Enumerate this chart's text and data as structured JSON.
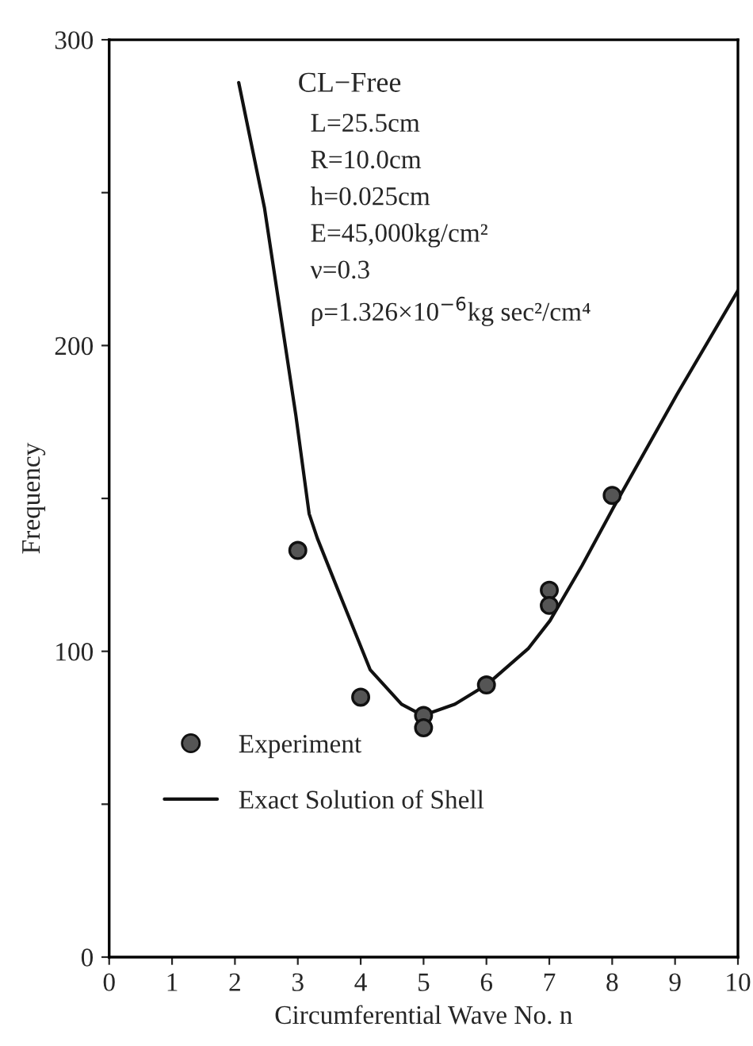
{
  "chart_data": {
    "type": "scatter",
    "xlabel": "Circumferential Wave No. n",
    "ylabel": "Frequency",
    "xlim": [
      0,
      10
    ],
    "ylim": [
      0,
      300
    ],
    "xticks": [
      0,
      1,
      2,
      3,
      4,
      5,
      6,
      7,
      8,
      9,
      10
    ],
    "yticks": [
      0,
      {
        "value": 50,
        "label": null
      },
      100,
      {
        "value": 150,
        "label": null
      },
      200,
      {
        "value": 250,
        "label": null
      },
      300
    ],
    "grid": false,
    "legend": "bottom left",
    "series": [
      {
        "name": "Experiment",
        "marker": "circle",
        "color": "#555555",
        "x": [
          3,
          4,
          5,
          5,
          6,
          7,
          7,
          8
        ],
        "values": [
          133,
          85,
          79,
          75,
          89,
          120,
          115,
          151
        ]
      },
      {
        "name": "Exact Solution of Shell",
        "type": "line",
        "marker": "none",
        "line_style": "solid",
        "color": "#111111",
        "x": [
          2.06,
          2.47,
          2.97,
          3.18,
          3.31,
          3.64,
          4.15,
          4.65,
          4.99,
          5.5,
          6.0,
          6.67,
          7.01,
          7.52,
          8.02,
          9.03,
          10.0
        ],
        "values": [
          286,
          245,
          177,
          145,
          137,
          120,
          94,
          82.7,
          79,
          82.7,
          89,
          101,
          110,
          128,
          147,
          184,
          218
        ]
      }
    ],
    "annotations": [
      "CL−Free",
      "L=25.5cm",
      "R=10.0cm",
      "h=0.025cm",
      "E=45,000kg/cm²",
      "ν=0.3",
      "ρ=1.326×10$^{−6}$kg sec²/cm⁴"
    ]
  }
}
